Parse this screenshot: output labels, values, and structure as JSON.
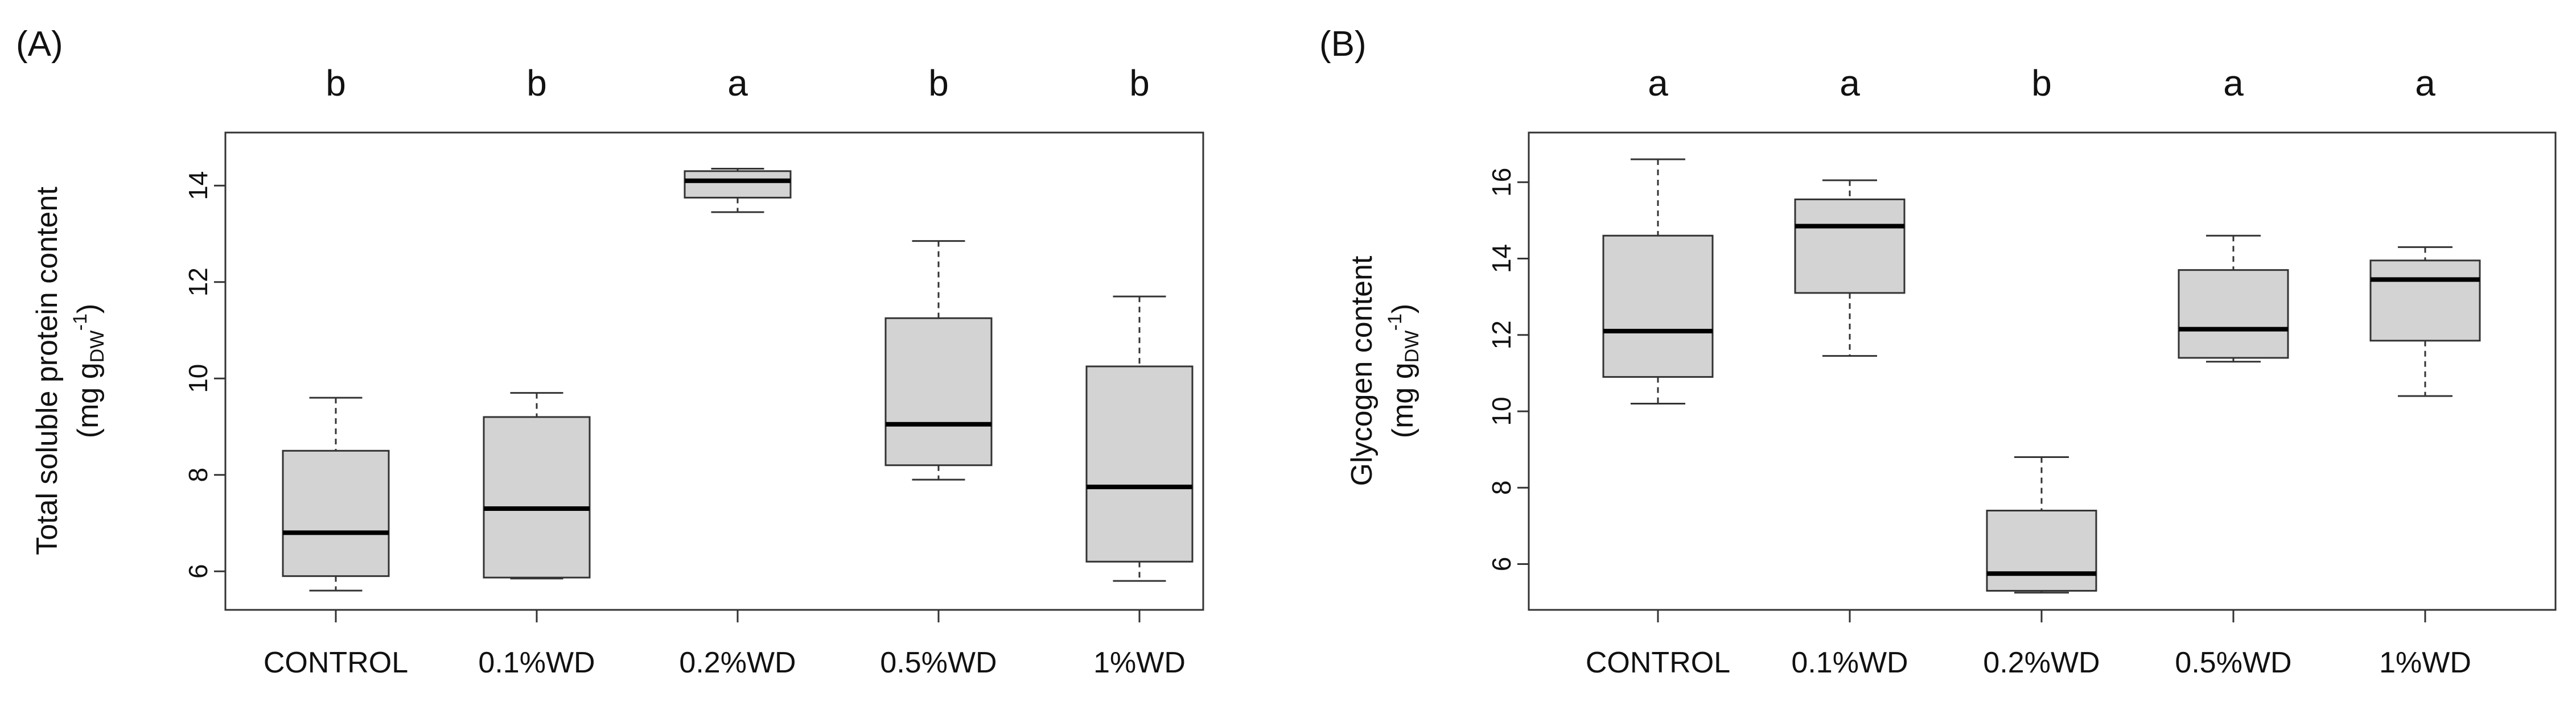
{
  "chart_data": [
    {
      "type": "box",
      "panel_label": "(A)",
      "ylabel": "Total soluble protein content",
      "ylabel_unit": {
        "open": "(mg g",
        "sub": "DW",
        "sup": "-1",
        "close": ")"
      },
      "categories": [
        "CONTROL",
        "0.1%WD",
        "0.2%WD",
        "0.5%WD",
        "1%WD"
      ],
      "significance": [
        "b",
        "b",
        "a",
        "b",
        "b"
      ],
      "ylim": [
        5.2,
        15.1
      ],
      "yticks": [
        6,
        8,
        10,
        12,
        14
      ],
      "boxes": [
        {
          "whisker_low": 5.6,
          "q1": 5.9,
          "median": 6.8,
          "q3": 8.5,
          "whisker_high": 9.6
        },
        {
          "whisker_low": 5.85,
          "q1": 5.87,
          "median": 7.3,
          "q3": 9.2,
          "whisker_high": 9.7
        },
        {
          "whisker_low": 13.45,
          "q1": 13.75,
          "median": 14.1,
          "q3": 14.3,
          "whisker_high": 14.35
        },
        {
          "whisker_low": 7.9,
          "q1": 8.2,
          "median": 9.05,
          "q3": 11.25,
          "whisker_high": 12.85
        },
        {
          "whisker_low": 5.8,
          "q1": 6.2,
          "median": 7.75,
          "q3": 10.25,
          "whisker_high": 11.7
        }
      ]
    },
    {
      "type": "box",
      "panel_label": "(B)",
      "ylabel": "Glycogen content",
      "ylabel_unit": {
        "open": "(mg g",
        "sub": "DW",
        "sup": "-1",
        "close": ")"
      },
      "categories": [
        "CONTROL",
        "0.1%WD",
        "0.2%WD",
        "0.5%WD",
        "1%WD"
      ],
      "significance": [
        "a",
        "a",
        "b",
        "a",
        "a"
      ],
      "ylim": [
        4.8,
        17.3
      ],
      "yticks": [
        6,
        8,
        10,
        12,
        14,
        16
      ],
      "boxes": [
        {
          "whisker_low": 10.2,
          "q1": 10.9,
          "median": 12.1,
          "q3": 14.6,
          "whisker_high": 16.6
        },
        {
          "whisker_low": 11.45,
          "q1": 13.1,
          "median": 14.85,
          "q3": 15.55,
          "whisker_high": 16.05
        },
        {
          "whisker_low": 5.25,
          "q1": 5.3,
          "median": 5.75,
          "q3": 7.4,
          "whisker_high": 8.8
        },
        {
          "whisker_low": 11.3,
          "q1": 11.4,
          "median": 12.15,
          "q3": 13.7,
          "whisker_high": 14.6
        },
        {
          "whisker_low": 10.4,
          "q1": 11.85,
          "median": 13.45,
          "q3": 13.95,
          "whisker_high": 14.3
        }
      ]
    }
  ]
}
